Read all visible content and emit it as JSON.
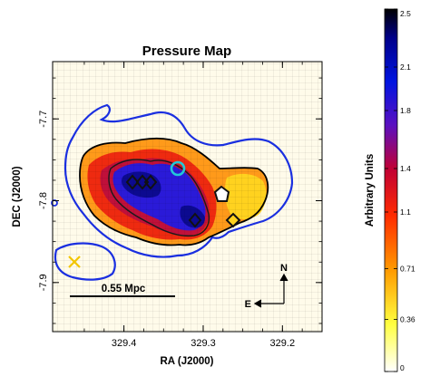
{
  "chart_data": {
    "type": "heatmap",
    "title": "Pressure Map",
    "xlabel": "RA (J2000)",
    "ylabel": "DEC (J2000)",
    "x_ticks": [
      "329.4",
      "329.3",
      "329.2"
    ],
    "x_tick_values": [
      329.4,
      329.3,
      329.2
    ],
    "y_ticks": [
      "-7.7",
      "-7.8",
      "-7.9"
    ],
    "y_tick_values": [
      -7.7,
      -7.8,
      -7.9
    ],
    "xlim": [
      329.49,
      329.15
    ],
    "ylim": [
      -7.96,
      -7.63
    ],
    "colorbar": {
      "label": "Arbitrary Units",
      "range": [
        0,
        2.5
      ],
      "tick_labels": [
        "0",
        "0.36",
        "0.71",
        "1.1",
        "1.4",
        "1.8",
        "2.1",
        "2.5"
      ],
      "tick_values": [
        0,
        0.36,
        0.71,
        1.1,
        1.4,
        1.8,
        2.1,
        2.5
      ],
      "colormap": [
        "#ffffff",
        "#ffff40",
        "#ff9a00",
        "#ff2b00",
        "#c00035",
        "#5a10c0",
        "#0014e0",
        "#00008a",
        "#000000"
      ]
    },
    "scale_bar": {
      "label": "0.55 Mpc"
    },
    "compass": {
      "north": "N",
      "east": "E"
    },
    "colors": {
      "outer_contour": "#1a2fe0",
      "inner_contour": "#000000",
      "cyan_marker": "#22c8d8",
      "x_marker": "#f2c500",
      "background": "#fffbea"
    }
  }
}
